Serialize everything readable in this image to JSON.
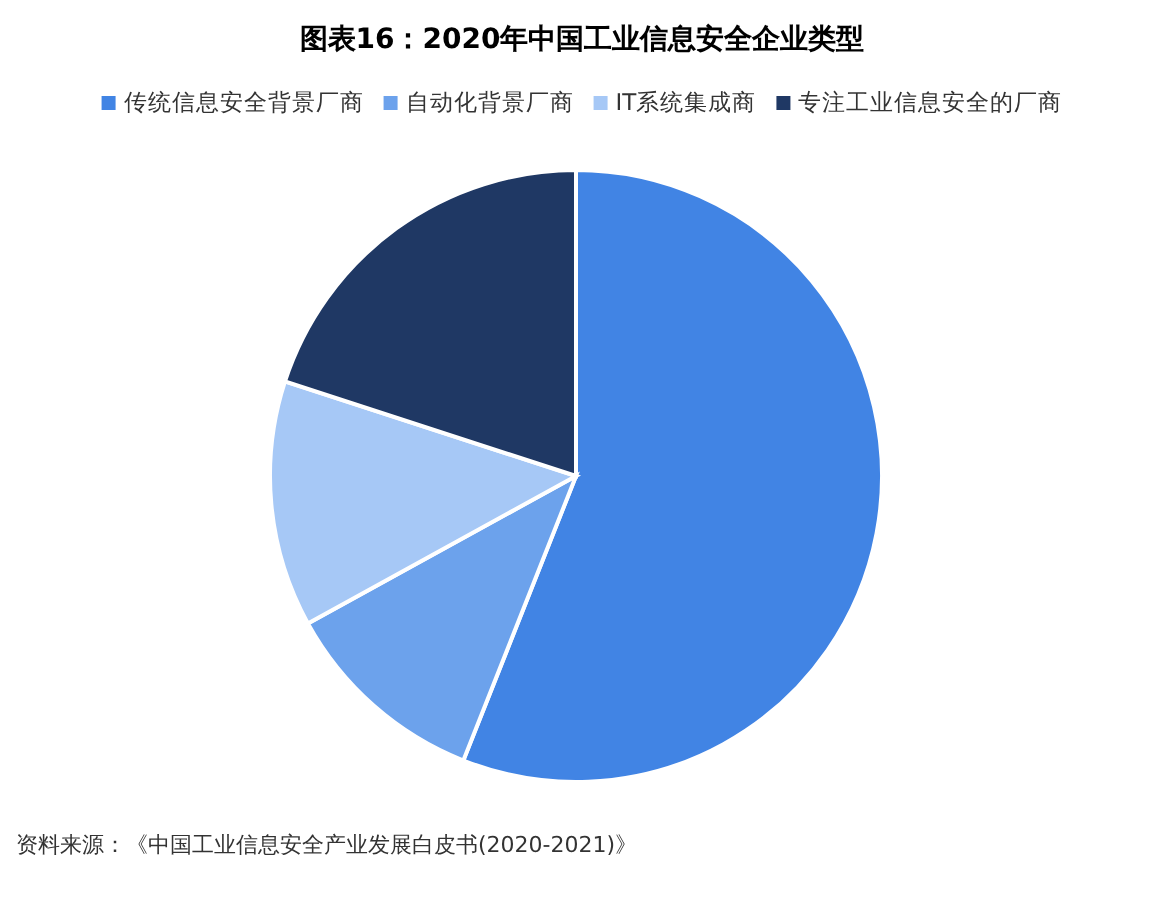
{
  "chart_data": {
    "type": "pie",
    "title": "图表16：2020年中国工业信息安全企业类型",
    "categories": [
      "传统信息安全背景厂商",
      "自动化背景厂商",
      "IT系统集成商",
      "专注工业信息安全的厂商"
    ],
    "values": [
      56,
      11,
      13,
      20
    ],
    "colors": [
      "#4184e4",
      "#6ca2ec",
      "#a6c8f6",
      "#1f3864"
    ],
    "legend": "top",
    "annotations": [
      "资料来源：《中国工业信息安全产业发展白皮书(2020-2021)》"
    ]
  }
}
